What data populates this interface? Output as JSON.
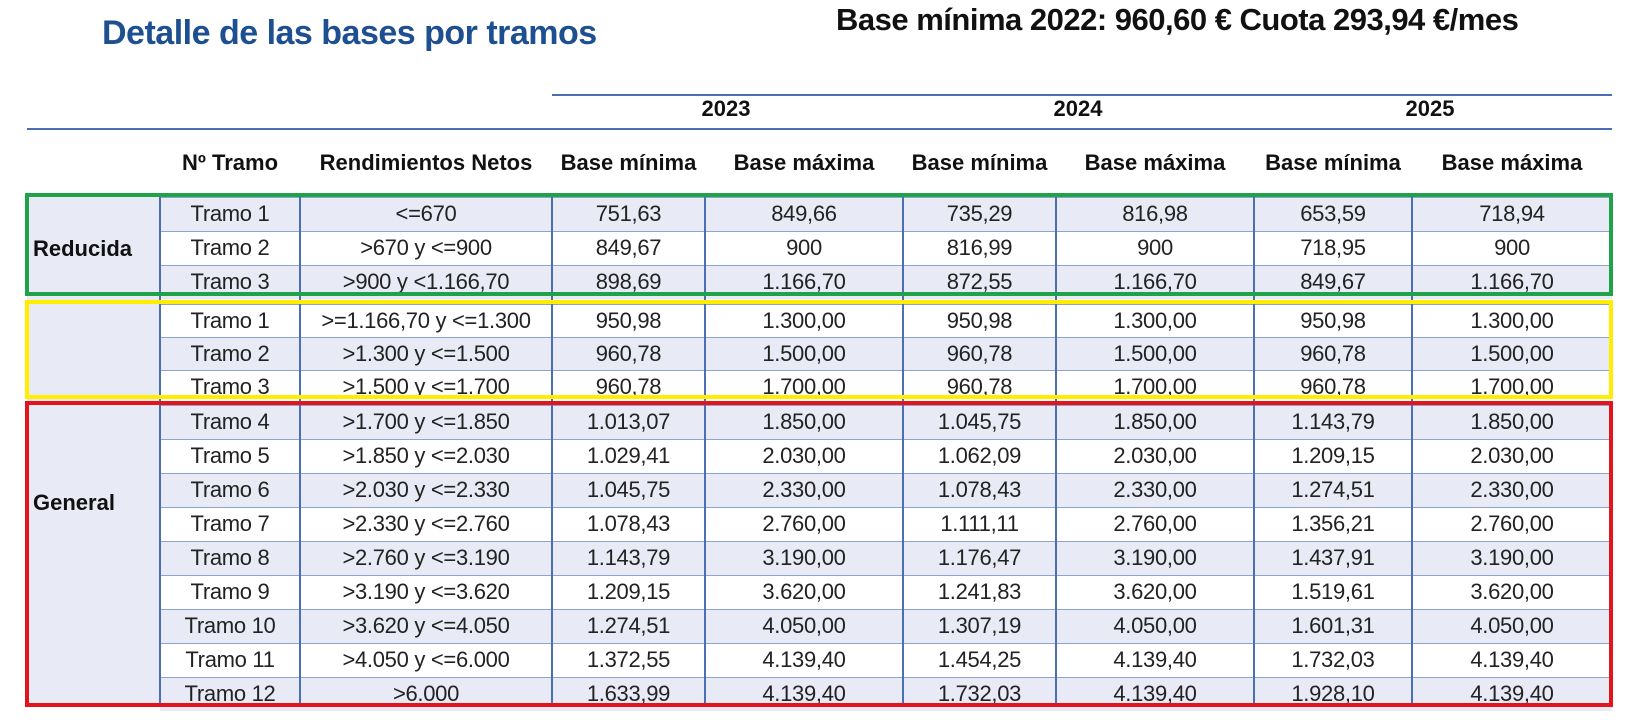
{
  "title": "Detalle de las bases por tramos",
  "subtitle": "Base mínima 2022: 960,60 € Cuota 293,94 €/mes",
  "years": [
    "2023",
    "2024",
    "2025"
  ],
  "column_headers": {
    "tramo": "Nº Tramo",
    "rendimientos": "Rendimientos Netos",
    "base_min": "Base mínima",
    "base_max": "Base máxima"
  },
  "groups": {
    "reducida": "Reducida",
    "general": "General"
  },
  "frame_colors": {
    "reducida": "#1fa24a",
    "intermedia": "#ffee00",
    "general": "#e3141c"
  },
  "rows": [
    {
      "tramo": "Tramo 1",
      "rend": "<=670",
      "v": [
        "751,63",
        "849,66",
        "735,29",
        "816,98",
        "653,59",
        "718,94"
      ]
    },
    {
      "tramo": "Tramo 2",
      "rend": ">670 y <=900",
      "v": [
        "849,67",
        "900",
        "816,99",
        "900",
        "718,95",
        "900"
      ]
    },
    {
      "tramo": "Tramo 3",
      "rend": ">900 y <1.166,70",
      "v": [
        "898,69",
        "1.166,70",
        "872,55",
        "1.166,70",
        "849,67",
        "1.166,70"
      ]
    },
    {
      "tramo": "Tramo 1",
      "rend": ">=1.166,70 y <=1.300",
      "v": [
        "950,98",
        "1.300,00",
        "950,98",
        "1.300,00",
        "950,98",
        "1.300,00"
      ]
    },
    {
      "tramo": "Tramo 2",
      "rend": ">1.300 y <=1.500",
      "v": [
        "960,78",
        "1.500,00",
        "960,78",
        "1.500,00",
        "960,78",
        "1.500,00"
      ]
    },
    {
      "tramo": "Tramo 3",
      "rend": ">1.500 y <=1.700",
      "v": [
        "960,78",
        "1.700,00",
        "960,78",
        "1.700,00",
        "960,78",
        "1.700,00"
      ]
    },
    {
      "tramo": "Tramo 4",
      "rend": ">1.700 y <=1.850",
      "v": [
        "1.013,07",
        "1.850,00",
        "1.045,75",
        "1.850,00",
        "1.143,79",
        "1.850,00"
      ]
    },
    {
      "tramo": "Tramo 5",
      "rend": ">1.850 y <=2.030",
      "v": [
        "1.029,41",
        "2.030,00",
        "1.062,09",
        "2.030,00",
        "1.209,15",
        "2.030,00"
      ]
    },
    {
      "tramo": "Tramo 6",
      "rend": ">2.030 y <=2.330",
      "v": [
        "1.045,75",
        "2.330,00",
        "1.078,43",
        "2.330,00",
        "1.274,51",
        "2.330,00"
      ]
    },
    {
      "tramo": "Tramo 7",
      "rend": ">2.330 y <=2.760",
      "v": [
        "1.078,43",
        "2.760,00",
        "1.111,11",
        "2.760,00",
        "1.356,21",
        "2.760,00"
      ]
    },
    {
      "tramo": "Tramo 8",
      "rend": ">2.760 y <=3.190",
      "v": [
        "1.143,79",
        "3.190,00",
        "1.176,47",
        "3.190,00",
        "1.437,91",
        "3.190,00"
      ]
    },
    {
      "tramo": "Tramo 9",
      "rend": ">3.190 y <=3.620",
      "v": [
        "1.209,15",
        "3.620,00",
        "1.241,83",
        "3.620,00",
        "1.519,61",
        "3.620,00"
      ]
    },
    {
      "tramo": "Tramo 10",
      "rend": ">3.620 y <=4.050",
      "v": [
        "1.274,51",
        "4.050,00",
        "1.307,19",
        "4.050,00",
        "1.601,31",
        "4.050,00"
      ]
    },
    {
      "tramo": "Tramo 11",
      "rend": ">4.050 y <=6.000",
      "v": [
        "1.372,55",
        "4.139,40",
        "1.454,25",
        "4.139,40",
        "1.732,03",
        "4.139,40"
      ]
    },
    {
      "tramo": "Tramo 12",
      "rend": ">6.000",
      "v": [
        "1.633,99",
        "4.139,40",
        "1.732,03",
        "4.139,40",
        "1.928,10",
        "4.139,40"
      ]
    }
  ]
}
